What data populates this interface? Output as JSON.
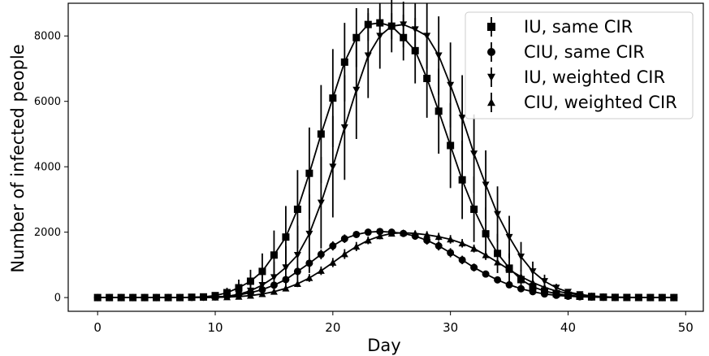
{
  "chart_data": {
    "type": "scatter",
    "title": "",
    "xlabel": "Day",
    "ylabel": "Number of infected people",
    "xlim": [
      -2.5,
      51.5
    ],
    "ylim": [
      -420,
      9000
    ],
    "xticks": [
      0,
      10,
      20,
      30,
      40,
      50
    ],
    "yticks": [
      0,
      2000,
      4000,
      6000,
      8000
    ],
    "grid": false,
    "legend_position": "top-right",
    "series": [
      {
        "name": "IU, same CIR",
        "marker": "square",
        "x_start": 0,
        "x_step": 1,
        "values": [
          0,
          0,
          0,
          0,
          0,
          0,
          0,
          0,
          10,
          20,
          60,
          150,
          300,
          500,
          800,
          1300,
          1850,
          2700,
          3800,
          5000,
          6100,
          7200,
          7950,
          8350,
          8400,
          8300,
          7950,
          7550,
          6700,
          5700,
          4650,
          3600,
          2700,
          1950,
          1350,
          900,
          550,
          330,
          200,
          120,
          70,
          40,
          20,
          10,
          5,
          3,
          2,
          1,
          0,
          0
        ],
        "errors": [
          0,
          0,
          0,
          0,
          0,
          0,
          0,
          0,
          20,
          40,
          80,
          150,
          250,
          350,
          550,
          750,
          950,
          1200,
          1400,
          1500,
          1500,
          1200,
          900,
          500,
          400,
          400,
          700,
          1000,
          1200,
          1300,
          1300,
          1200,
          1000,
          800,
          600,
          450,
          300,
          200,
          120,
          80,
          50,
          30,
          20,
          10,
          5,
          3,
          2,
          1,
          0,
          0
        ],
        "fit_line": true
      },
      {
        "name": "CIU, same CIR",
        "marker": "circle",
        "x_start": 0,
        "x_step": 1,
        "values": [
          0,
          0,
          0,
          0,
          0,
          0,
          0,
          0,
          5,
          10,
          20,
          40,
          80,
          150,
          240,
          380,
          550,
          800,
          1050,
          1320,
          1580,
          1800,
          1930,
          2000,
          2020,
          2000,
          1960,
          1880,
          1750,
          1580,
          1370,
          1150,
          920,
          720,
          540,
          390,
          270,
          180,
          110,
          70,
          40,
          25,
          15,
          8,
          4,
          2,
          1,
          0,
          0,
          0
        ],
        "errors": [
          0,
          0,
          0,
          0,
          0,
          0,
          0,
          0,
          5,
          10,
          20,
          30,
          50,
          70,
          90,
          110,
          130,
          140,
          150,
          150,
          140,
          130,
          100,
          80,
          70,
          70,
          90,
          110,
          130,
          140,
          140,
          130,
          120,
          100,
          80,
          60,
          45,
          30,
          20,
          15,
          10,
          5,
          3,
          2,
          1,
          0,
          0,
          0,
          0,
          0
        ],
        "fit_line": true
      },
      {
        "name": "IU, weighted CIR",
        "marker": "triangle-down",
        "x_start": 0,
        "x_step": 1,
        "values": [
          0,
          0,
          0,
          0,
          0,
          0,
          0,
          0,
          0,
          5,
          15,
          40,
          100,
          210,
          380,
          620,
          920,
          1300,
          1950,
          2900,
          4000,
          5200,
          6350,
          7400,
          8000,
          8300,
          8350,
          8200,
          8000,
          7400,
          6500,
          5500,
          4400,
          3450,
          2550,
          1850,
          1250,
          800,
          500,
          300,
          170,
          100,
          50,
          25,
          12,
          6,
          3,
          1,
          0,
          0
        ],
        "errors": [
          0,
          0,
          0,
          0,
          0,
          0,
          0,
          0,
          0,
          10,
          30,
          60,
          120,
          200,
          320,
          480,
          650,
          900,
          1200,
          1400,
          1550,
          1600,
          1500,
          1300,
          1000,
          800,
          700,
          800,
          1000,
          1200,
          1300,
          1300,
          1200,
          1050,
          850,
          650,
          450,
          300,
          200,
          120,
          80,
          50,
          30,
          15,
          8,
          4,
          2,
          1,
          0,
          0
        ],
        "fit_line": true
      },
      {
        "name": "CIU, weighted CIR",
        "marker": "triangle-up",
        "x_start": 0,
        "x_step": 1,
        "values": [
          0,
          0,
          0,
          0,
          0,
          0,
          0,
          0,
          0,
          0,
          5,
          15,
          30,
          60,
          110,
          180,
          280,
          420,
          600,
          820,
          1070,
          1330,
          1560,
          1750,
          1880,
          1960,
          1980,
          1960,
          1920,
          1860,
          1780,
          1660,
          1500,
          1300,
          1080,
          850,
          640,
          460,
          310,
          200,
          130,
          80,
          45,
          25,
          12,
          6,
          3,
          1,
          0,
          0
        ],
        "errors": [
          0,
          0,
          0,
          0,
          0,
          0,
          0,
          0,
          0,
          0,
          5,
          10,
          20,
          30,
          50,
          60,
          80,
          100,
          120,
          130,
          140,
          150,
          140,
          120,
          100,
          80,
          80,
          90,
          110,
          120,
          130,
          130,
          120,
          110,
          100,
          80,
          60,
          45,
          30,
          20,
          15,
          10,
          5,
          3,
          2,
          1,
          0,
          0,
          0,
          0
        ],
        "fit_line": true
      }
    ]
  }
}
